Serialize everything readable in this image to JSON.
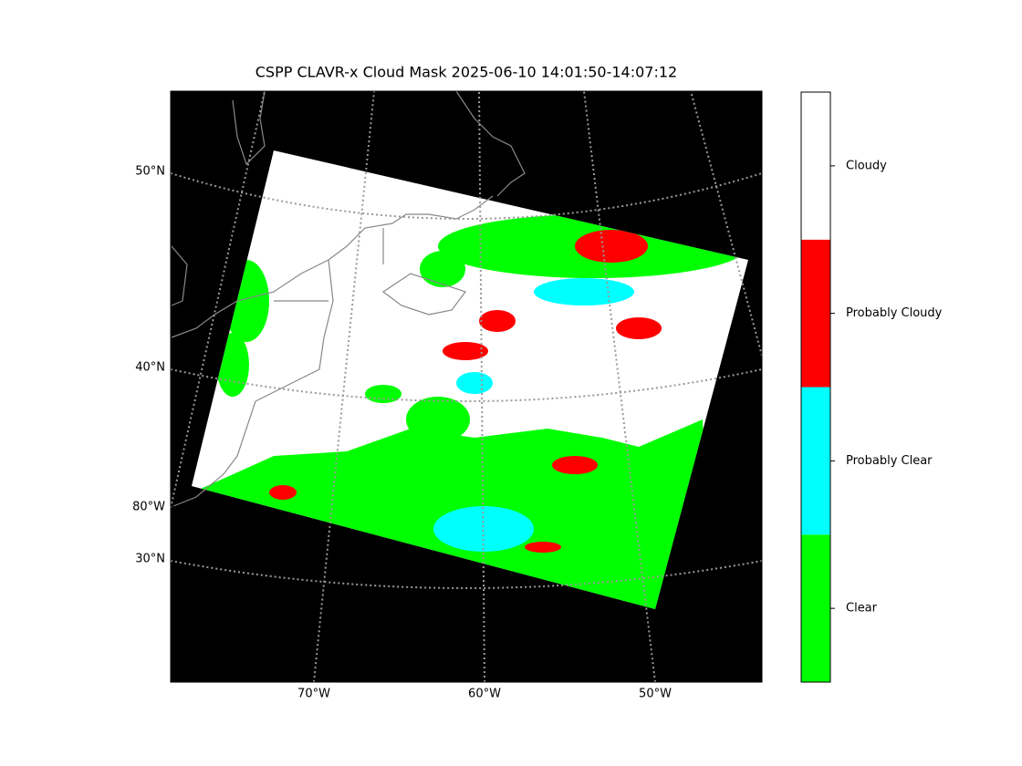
{
  "title": "CSPP CLAVR-x Cloud Mask 2025-06-10 14:01:50-14:07:12",
  "gridlines": {
    "latitude_labels": [
      "50°N",
      "40°N",
      "30°N"
    ],
    "longitude_left_label": "80°W",
    "longitude_bottom_labels": [
      "70°W",
      "60°W",
      "50°W"
    ]
  },
  "colorbar": {
    "categories": [
      {
        "label": "Clear",
        "color": "#00ff00"
      },
      {
        "label": "Probably Clear",
        "color": "#00ffff"
      },
      {
        "label": "Probably Cloudy",
        "color": "#ff0000"
      },
      {
        "label": "Cloudy",
        "color": "#ffffff"
      }
    ]
  }
}
